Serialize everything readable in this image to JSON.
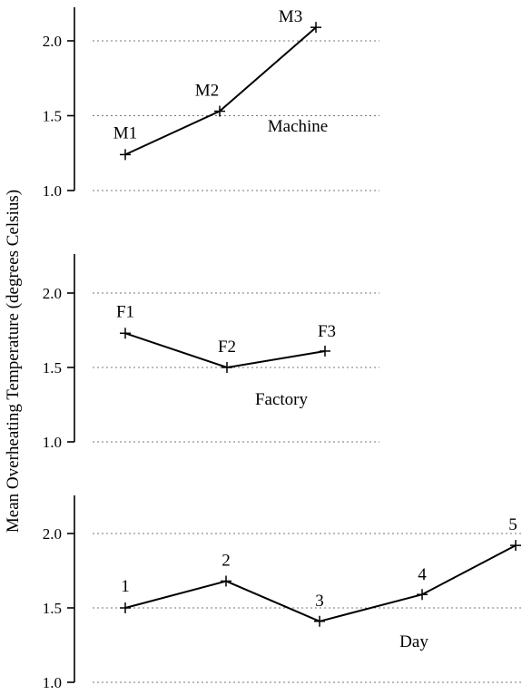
{
  "ylabel": "Mean Overheating Temperature (degrees Celsius)",
  "chart_data": [
    {
      "type": "line",
      "title": "Machine",
      "categories": [
        "M1",
        "M2",
        "M3"
      ],
      "values": [
        1.24,
        1.53,
        2.09
      ],
      "yticks": [
        "1.0",
        "1.5",
        "2.0"
      ],
      "ylim": [
        1.0,
        2.2
      ],
      "grid": true
    },
    {
      "type": "line",
      "title": "Factory",
      "categories": [
        "F1",
        "F2",
        "F3"
      ],
      "values": [
        1.73,
        1.5,
        1.61
      ],
      "yticks": [
        "1.0",
        "1.5",
        "2.0"
      ],
      "ylim": [
        1.0,
        2.2
      ],
      "grid": true
    },
    {
      "type": "line",
      "title": "Day",
      "categories": [
        "1",
        "2",
        "3",
        "4",
        "5"
      ],
      "values": [
        1.5,
        1.68,
        1.41,
        1.59,
        1.92
      ],
      "yticks": [
        "1.0",
        "1.5",
        "2.0"
      ],
      "ylim": [
        1.0,
        2.2
      ],
      "grid": true
    }
  ]
}
